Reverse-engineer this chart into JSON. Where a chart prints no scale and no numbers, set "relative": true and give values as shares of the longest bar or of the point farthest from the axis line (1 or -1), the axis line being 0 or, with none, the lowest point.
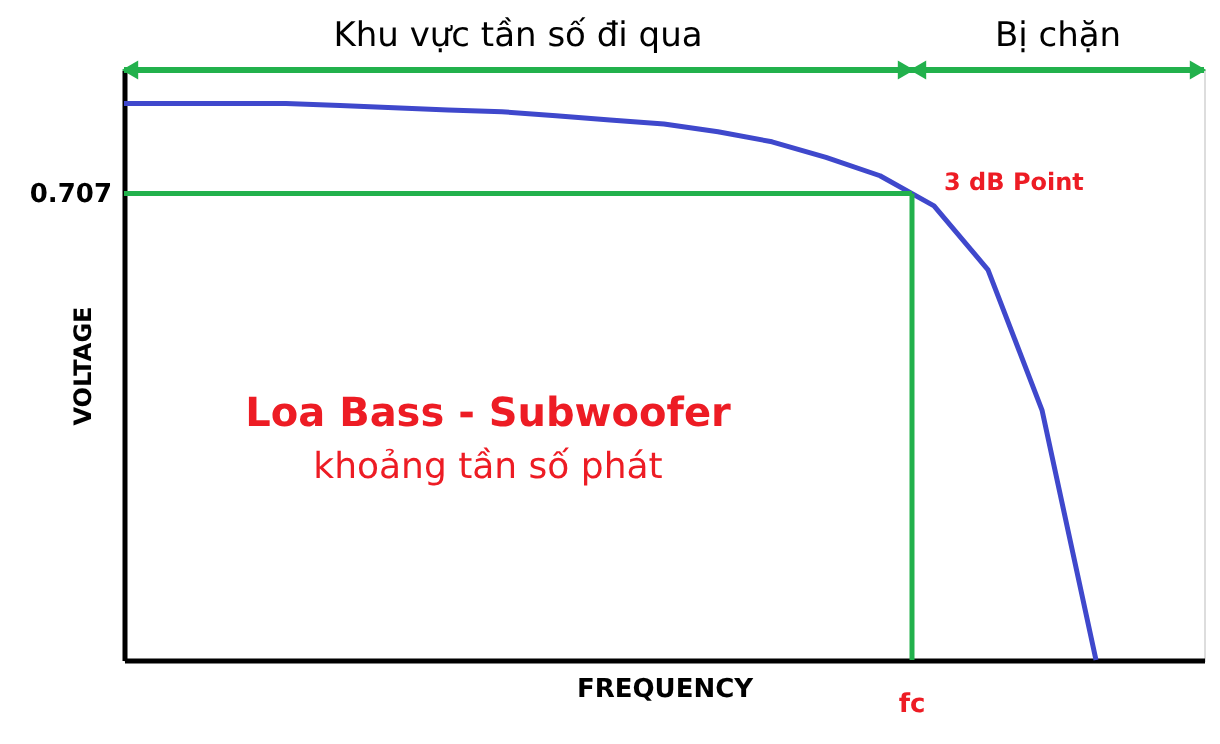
{
  "chart_data": {
    "type": "line",
    "relative": true,
    "xlabel": "FREQUENCY",
    "ylabel": "VOLTAGE",
    "tick_labels": false,
    "marker": "none",
    "line_style": "solid",
    "categories": [
      null,
      null,
      null,
      null,
      null,
      null,
      null,
      null,
      null,
      null,
      null,
      null,
      null,
      null,
      null,
      null,
      null,
      null,
      null,
      null,
      null
    ],
    "series": [
      {
        "color": "#3f48cc",
        "values": [
          1,
          1,
          1,
          1,
          0.996,
          0.992,
          0.988,
          0.985,
          0.978,
          0.97,
          0.963,
          0.949,
          0.931,
          0.903,
          0.87,
          0.816,
          0.701,
          0.449,
          0,
          null,
          null
        ]
      }
    ],
    "ref_lines": [
      {
        "axis": "y",
        "value": 0.838,
        "color": "#22b14c"
      }
    ],
    "annotations": [
      "Khu vực tần số đi qua",
      "Bị chặn",
      "3 dB Point",
      "fc",
      "0.707",
      "Loa Bass - Subwoofer",
      "khoảng tần số phát"
    ]
  }
}
